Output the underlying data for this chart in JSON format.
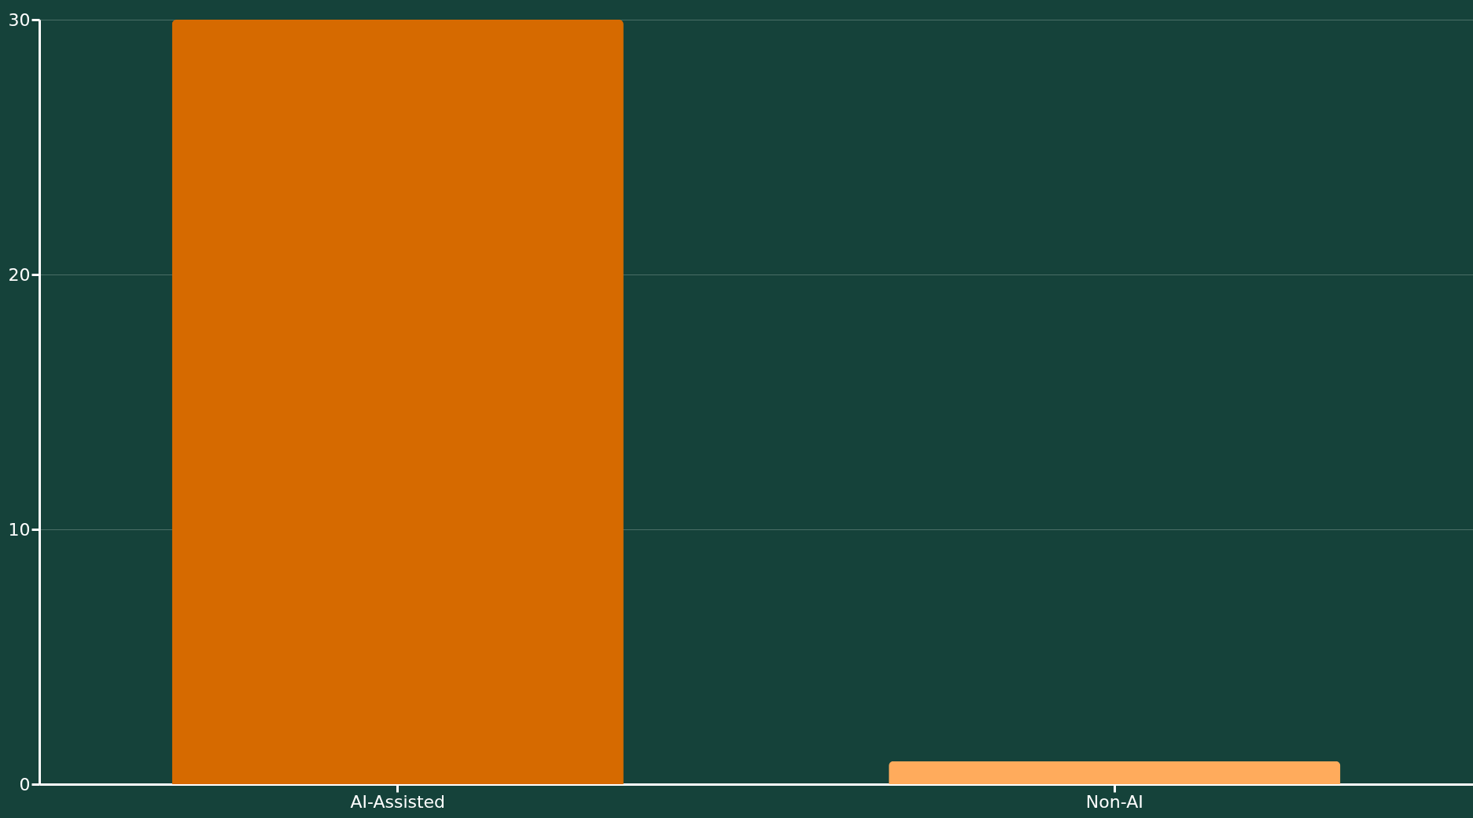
{
  "chart_data": {
    "type": "bar",
    "categories": [
      "AI-Assisted",
      "Non-AI"
    ],
    "values": [
      30,
      0.9
    ],
    "colors": [
      "#d66a00",
      "#ffab5c"
    ],
    "ylim": [
      0,
      30
    ],
    "yticks": [
      0,
      10,
      20,
      30
    ],
    "grid": "y",
    "legend": false
  }
}
